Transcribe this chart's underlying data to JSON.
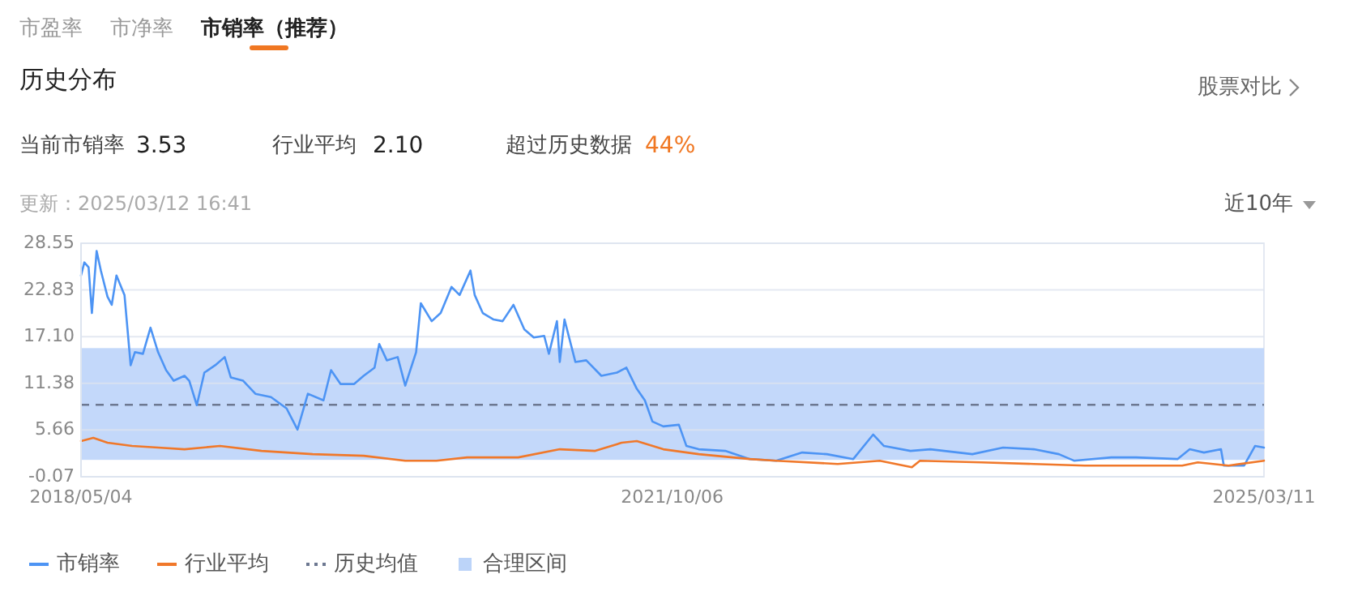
{
  "chart_data": {
    "type": "line",
    "title": "历史分布",
    "annotations": [
      "市盈率",
      "市净率",
      "市销率（推荐）",
      "股票对比",
      "当前市销率",
      "3.53",
      "行业平均",
      "2.10",
      "超过历史数据",
      "44%",
      "更新：2025/03/12 16:41",
      "近10年"
    ],
    "xlim": [
      "2018-05-04",
      "2025-03-11"
    ],
    "xticks": [
      {
        "value": "2018-05-04",
        "label": "2018/05/04"
      },
      {
        "value": "2021-10-06",
        "label": "2021/10/06"
      },
      {
        "value": "2025-03-11",
        "label": "2025/03/11"
      }
    ],
    "ylim": [
      -0.07,
      28.55
    ],
    "yticks": [
      -0.07,
      5.66,
      11.38,
      {
        "value": 17.1,
        "label": "17.10"
      },
      22.83,
      28.55
    ],
    "grid": "y",
    "legend": "bottom left",
    "marker": "none",
    "line_style": "solid",
    "series": [
      {
        "name": "市销率",
        "color": "#4d94f4",
        "x": [
          "2018-05-04",
          "2018-05-11",
          "2018-05-20",
          "2018-05-27",
          "2018-06-06",
          "2018-06-15",
          "2018-06-29",
          "2018-07-08",
          "2018-07-18",
          "2018-08-04",
          "2018-08-17",
          "2018-08-26",
          "2018-09-12",
          "2018-09-28",
          "2018-10-14",
          "2018-10-31",
          "2018-11-16",
          "2018-12-09",
          "2018-12-19",
          "2019-01-04",
          "2019-01-20",
          "2019-02-12",
          "2019-03-04",
          "2019-03-17",
          "2019-04-12",
          "2019-05-08",
          "2019-06-10",
          "2019-07-13",
          "2019-08-05",
          "2019-08-27",
          "2019-09-29",
          "2019-10-15",
          "2019-11-04",
          "2019-12-03",
          "2019-12-23",
          "2020-01-15",
          "2020-01-25",
          "2020-02-10",
          "2020-03-04",
          "2020-03-20",
          "2020-04-12",
          "2020-04-22",
          "2020-05-15",
          "2020-06-03",
          "2020-06-26",
          "2020-07-13",
          "2020-08-05",
          "2020-08-14",
          "2020-08-31",
          "2020-09-23",
          "2020-10-12",
          "2020-11-04",
          "2020-11-27",
          "2020-12-17",
          "2021-01-08",
          "2021-01-18",
          "2021-02-04",
          "2021-02-10",
          "2021-02-20",
          "2021-03-15",
          "2021-04-07",
          "2021-05-09",
          "2021-06-11",
          "2021-07-01",
          "2021-07-23",
          "2021-08-09",
          "2021-08-25",
          "2021-09-17",
          "2021-10-20",
          "2021-11-05",
          "2021-12-01",
          "2022-01-26",
          "2022-03-19",
          "2022-05-14",
          "2022-07-08",
          "2022-08-29",
          "2022-10-24",
          "2022-12-05",
          "2022-12-28",
          "2023-02-22",
          "2023-04-05",
          "2023-07-03",
          "2023-09-06",
          "2023-11-10",
          "2024-01-02",
          "2024-02-03",
          "2024-04-22",
          "2024-06-13",
          "2024-09-09",
          "2024-10-05",
          "2024-11-04",
          "2024-12-10",
          "2024-12-16",
          "2025-01-28",
          "2025-02-20",
          "2025-03-11"
        ],
        "values": [
          24.6,
          26.2,
          25.6,
          20.0,
          27.6,
          25.2,
          22.0,
          21.0,
          24.6,
          22.2,
          13.6,
          15.2,
          15.0,
          18.2,
          15.2,
          13.0,
          11.7,
          12.3,
          11.7,
          8.7,
          12.7,
          13.6,
          14.6,
          12.1,
          11.7,
          10.1,
          9.7,
          8.3,
          5.7,
          10.1,
          9.3,
          13.0,
          11.3,
          11.3,
          12.3,
          13.3,
          16.2,
          14.2,
          14.6,
          11.1,
          15.2,
          21.2,
          19.0,
          20.0,
          23.2,
          22.2,
          25.2,
          22.2,
          20.0,
          19.2,
          19.0,
          21.0,
          18.0,
          17.0,
          17.2,
          15.0,
          19.0,
          14.0,
          19.2,
          14.0,
          14.2,
          12.3,
          12.7,
          13.3,
          10.7,
          9.3,
          6.7,
          6.1,
          6.3,
          3.7,
          3.3,
          3.1,
          2.1,
          1.9,
          2.9,
          2.7,
          2.1,
          5.1,
          3.7,
          3.1,
          3.3,
          2.7,
          3.5,
          3.3,
          2.7,
          1.9,
          2.3,
          2.3,
          2.1,
          3.3,
          2.9,
          3.3,
          1.3,
          1.3,
          3.7,
          3.5
        ]
      },
      {
        "name": "行业平均",
        "color": "#f0782a",
        "x": [
          "2018-05-04",
          "2018-05-30",
          "2018-06-29",
          "2018-08-20",
          "2018-10-14",
          "2018-12-09",
          "2019-02-22",
          "2019-05-21",
          "2019-09-06",
          "2019-12-23",
          "2020-03-20",
          "2020-05-25",
          "2020-07-29",
          "2020-11-14",
          "2021-02-10",
          "2021-04-26",
          "2021-06-21",
          "2021-07-23",
          "2021-09-17",
          "2021-12-01",
          "2022-03-19",
          "2022-05-14",
          "2022-09-21",
          "2022-12-19",
          "2023-02-25",
          "2023-03-14",
          "2023-07-22",
          "2023-11-10",
          "2024-02-26",
          "2024-06-13",
          "2024-09-19",
          "2024-10-22",
          "2024-12-26",
          "2025-03-11"
        ],
        "values": [
          4.3,
          4.7,
          4.1,
          3.7,
          3.5,
          3.3,
          3.7,
          3.1,
          2.7,
          2.5,
          1.9,
          1.9,
          2.3,
          2.3,
          3.3,
          3.1,
          4.1,
          4.3,
          3.3,
          2.7,
          2.1,
          1.9,
          1.5,
          1.9,
          1.1,
          1.9,
          1.7,
          1.5,
          1.3,
          1.3,
          1.3,
          1.7,
          1.3,
          1.9
        ]
      }
    ],
    "ref_lines": [
      {
        "axis": "y",
        "value": 8.75,
        "label": "历史均值",
        "color": "#6d7891",
        "line_style": "dashed"
      }
    ],
    "bands": [
      {
        "axis": "y",
        "from": 2.0,
        "to": 15.7,
        "label": "合理区间",
        "color": "#bcd4f9"
      }
    ]
  }
}
